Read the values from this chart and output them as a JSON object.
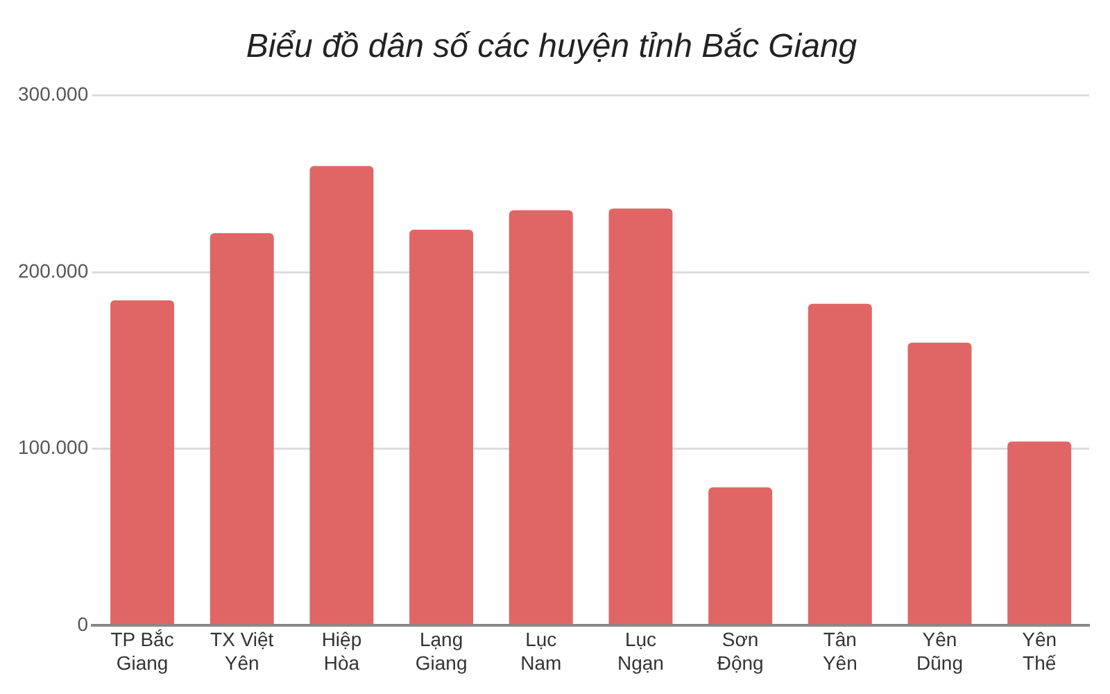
{
  "chart_data": {
    "type": "bar",
    "title": "Biểu đồ dân số các huyện tỉnh Bắc Giang",
    "categories": [
      "TP Bắc Giang",
      "TX Việt Yên",
      "Hiệp Hòa",
      "Lạng Giang",
      "Lục Nam",
      "Lục Ngạn",
      "Sơn Động",
      "Tân Yên",
      "Yên Dũng",
      "Yên Thế"
    ],
    "values": [
      184000,
      222000,
      260000,
      224000,
      235000,
      236000,
      78000,
      182000,
      160000,
      104000
    ],
    "color": "#e06666",
    "ylim": [
      0,
      300000
    ],
    "yticks": [
      0,
      {
        "value": 100000,
        "label": "100.000"
      },
      {
        "value": 200000,
        "label": "200.000"
      },
      {
        "value": 300000,
        "label": "300.000"
      }
    ],
    "grid": "y",
    "legend": false
  }
}
